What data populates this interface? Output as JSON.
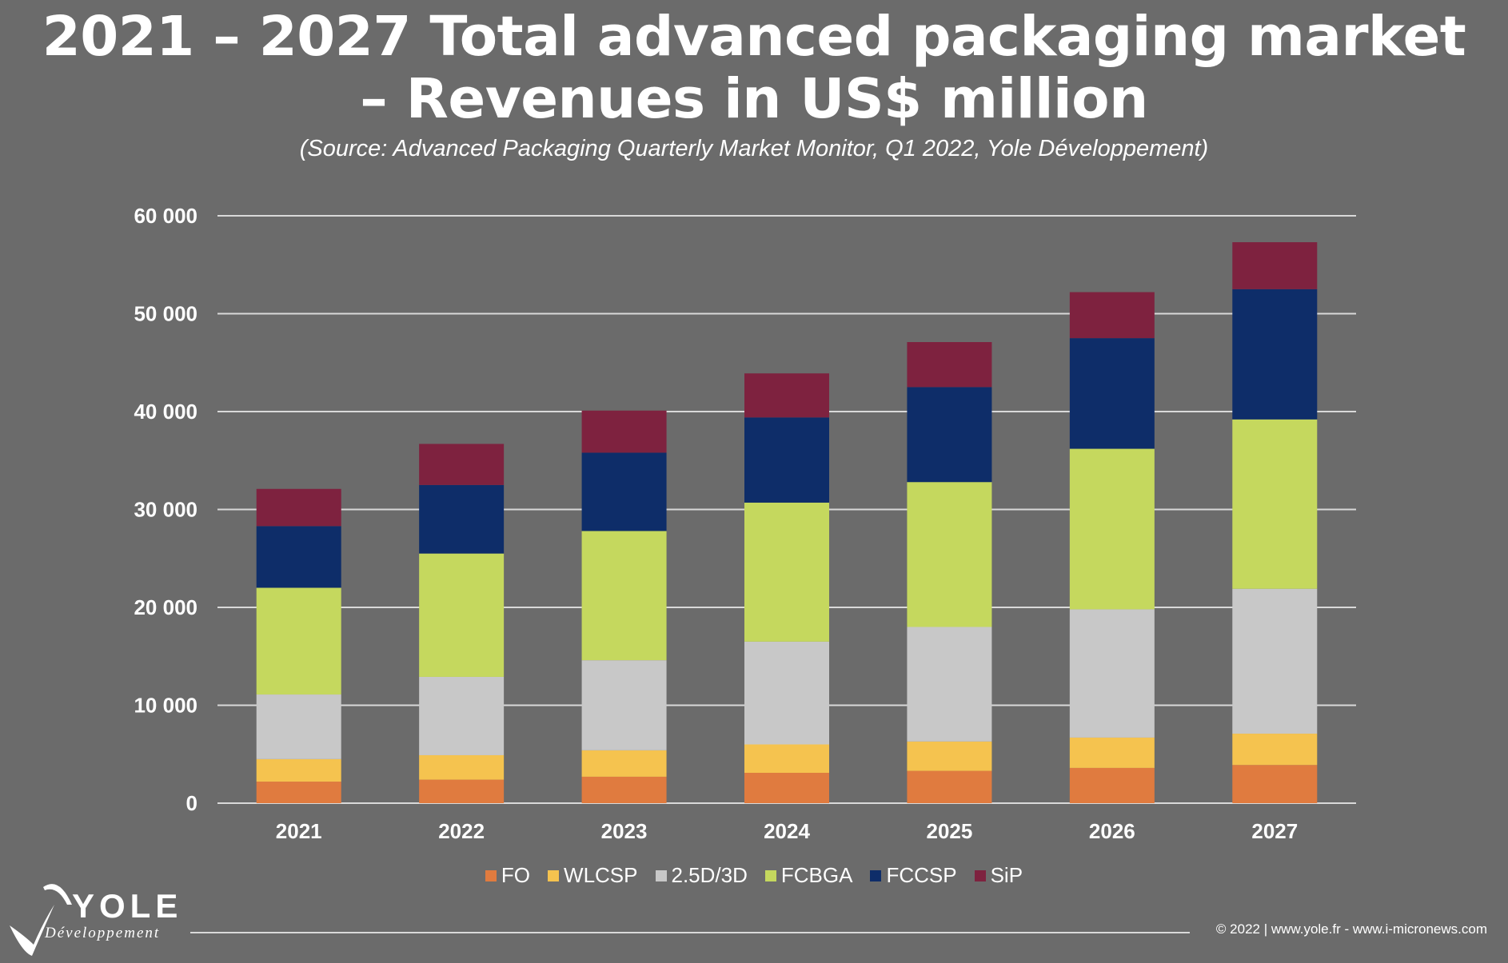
{
  "title": {
    "line1": "2021 – 2027 Total advanced packaging market",
    "line2": "– Revenues in US$ million"
  },
  "subtitle": "(Source: Advanced Packaging Quarterly Market Monitor, Q1  2022, Yole Développement)",
  "chart_data": {
    "type": "bar",
    "stacked": true,
    "title": "2021 – 2027 Total advanced packaging market – Revenues in US$ million",
    "xlabel": "",
    "ylabel": "",
    "ylim": [
      0,
      60000
    ],
    "yticks": [
      "0",
      "10 000",
      "20 000",
      "30 000",
      "40 000",
      "50 000",
      "60 000"
    ],
    "ytick_values": [
      0,
      10000,
      20000,
      30000,
      40000,
      50000,
      60000
    ],
    "grid": true,
    "legend_position": "bottom-center",
    "categories": [
      "2021",
      "2022",
      "2023",
      "2024",
      "2025",
      "2026",
      "2027"
    ],
    "series": [
      {
        "name": "FO",
        "color": "#e07b3f",
        "values": [
          2200,
          2400,
          2700,
          3100,
          3300,
          3600,
          3900
        ]
      },
      {
        "name": "WLCSP",
        "color": "#f5c34f",
        "values": [
          2300,
          2500,
          2700,
          2900,
          3000,
          3100,
          3200
        ]
      },
      {
        "name": "2.5D/3D",
        "color": "#c8c8c8",
        "values": [
          6600,
          8000,
          9200,
          10500,
          11700,
          13100,
          14800
        ]
      },
      {
        "name": "FCBGA",
        "color": "#c5d85e",
        "values": [
          10900,
          12600,
          13200,
          14200,
          14800,
          16400,
          17300
        ]
      },
      {
        "name": "FCCSP",
        "color": "#0e2d69",
        "values": [
          6300,
          7000,
          8000,
          8700,
          9700,
          11300,
          13300
        ]
      },
      {
        "name": "SiP",
        "color": "#7e223f",
        "values": [
          3800,
          4200,
          4300,
          4500,
          4600,
          4700,
          4800
        ]
      }
    ]
  },
  "logo": {
    "word": "YOLE",
    "sub": "Développement"
  },
  "copyright": "© 2022 | www.yole.fr - www.i-micronews.com",
  "colors": {
    "background": "#6b6b6b",
    "gridline": "#d9d9d9",
    "text": "#ffffff"
  }
}
